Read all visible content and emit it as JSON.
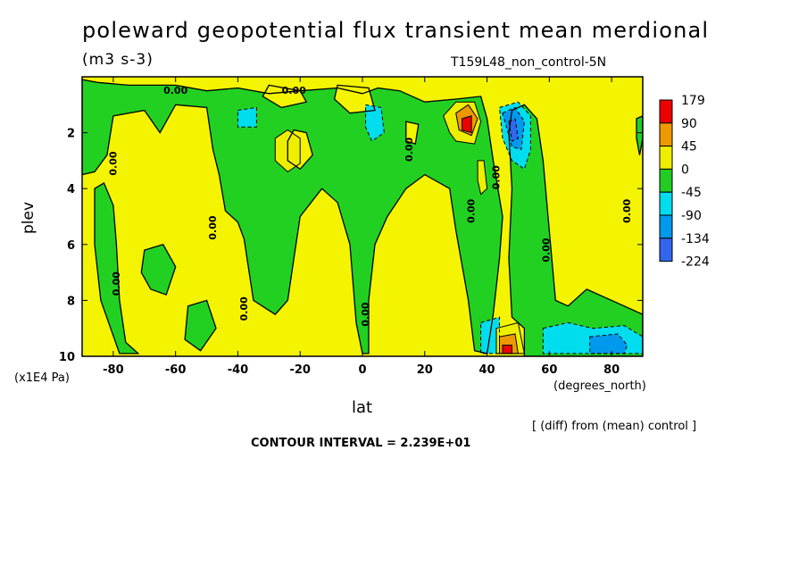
{
  "chart_data": {
    "type": "heatmap",
    "subtype": "filled-contour",
    "title": "poleward geopotential flux transient mean merdional",
    "units": "(m3 s-3)",
    "run_label": "T159L48_non_control-5N",
    "xlabel": "lat",
    "x_unit_label": "(degrees_north)",
    "ylabel": "plev",
    "y_unit_label": "(x1E4 Pa)",
    "diff_note": "[ (diff) from (mean) control ]",
    "contour_interval": "CONTOUR INTERVAL = 2.239E+01",
    "xlim": [
      -90,
      90
    ],
    "ylim": [
      10,
      0
    ],
    "x_ticks": [
      "-80",
      "-60",
      "-40",
      "-20",
      "0",
      "20",
      "40",
      "60",
      "80"
    ],
    "x_tick_values": [
      -80,
      -60,
      -40,
      -20,
      0,
      20,
      40,
      60,
      80
    ],
    "y_ticks": [
      "2",
      "4",
      "6",
      "8",
      "10"
    ],
    "y_tick_values": [
      2,
      4,
      6,
      8,
      10
    ],
    "zero_contour_label": "0.00",
    "colorbar": {
      "labels": [
        "179",
        "90",
        "45",
        "0",
        "-45",
        "-90",
        "-134",
        "-224"
      ],
      "colors": [
        "#ee0000",
        "#ee9900",
        "#eeee00",
        "#22cc22",
        "#00ddee",
        "#0099ee",
        "#3366ee"
      ]
    },
    "background_sign": {
      "positive_color": "#f4f400",
      "negative_color": "#22d022"
    },
    "regions": [
      {
        "sign": "negative",
        "polygon": [
          [
            -90,
            0.1
          ],
          [
            -90,
            3.5
          ],
          [
            -86,
            3.4
          ],
          [
            -82,
            2.8
          ],
          [
            -80,
            1.4
          ],
          [
            -70,
            1.2
          ],
          [
            -65,
            2.0
          ],
          [
            -60,
            1.0
          ],
          [
            -50,
            1.1
          ],
          [
            -48,
            2.6
          ],
          [
            -46,
            3.5
          ],
          [
            -44,
            4.8
          ],
          [
            -40,
            5.2
          ],
          [
            -38,
            5.8
          ],
          [
            -35,
            8.0
          ],
          [
            -28,
            8.5
          ],
          [
            -24,
            8.0
          ],
          [
            -22,
            6.5
          ],
          [
            -20,
            5.0
          ],
          [
            -13,
            4.0
          ],
          [
            -8,
            4.5
          ],
          [
            -4,
            6.0
          ],
          [
            -2,
            8.8
          ],
          [
            0,
            9.9
          ],
          [
            2,
            9.9
          ],
          [
            2,
            8.0
          ],
          [
            4,
            6.0
          ],
          [
            8,
            5.0
          ],
          [
            14,
            4.0
          ],
          [
            20,
            3.5
          ],
          [
            28,
            4.0
          ],
          [
            30,
            5.5
          ],
          [
            34,
            8.0
          ],
          [
            36,
            9.8
          ],
          [
            40,
            9.9
          ],
          [
            42,
            8.5
          ],
          [
            44,
            6.5
          ],
          [
            45,
            5.0
          ],
          [
            42,
            3.0
          ],
          [
            40,
            1.5
          ],
          [
            38,
            0.7
          ],
          [
            30,
            0.8
          ],
          [
            20,
            0.9
          ],
          [
            12,
            0.5
          ],
          [
            5,
            0.4
          ],
          [
            0,
            0.6
          ],
          [
            -8,
            0.4
          ],
          [
            -20,
            0.5
          ],
          [
            -30,
            0.6
          ],
          [
            -40,
            0.4
          ],
          [
            -50,
            0.5
          ],
          [
            -60,
            0.3
          ],
          [
            -75,
            0.3
          ],
          [
            -85,
            0.2
          ]
        ]
      },
      {
        "sign": "negative",
        "polygon": [
          [
            48,
            1.2
          ],
          [
            52,
            1.0
          ],
          [
            56,
            1.5
          ],
          [
            58,
            3.0
          ],
          [
            60,
            5.5
          ],
          [
            62,
            8.0
          ],
          [
            66,
            8.2
          ],
          [
            72,
            7.6
          ],
          [
            84,
            8.2
          ],
          [
            90,
            8.5
          ],
          [
            90,
            10
          ],
          [
            52,
            10
          ],
          [
            52,
            9.0
          ],
          [
            48,
            8.6
          ],
          [
            47,
            6.5
          ],
          [
            48,
            4.0
          ],
          [
            47,
            2.0
          ]
        ]
      },
      {
        "sign": "negative",
        "polygon": [
          [
            88,
            1.5
          ],
          [
            90,
            1.4
          ],
          [
            90,
            2.2
          ],
          [
            89,
            2.8
          ],
          [
            88,
            2.2
          ]
        ]
      },
      {
        "sign": "negative",
        "polygon": [
          [
            -86,
            4.0
          ],
          [
            -83,
            3.8
          ],
          [
            -80,
            4.6
          ],
          [
            -79,
            6.0
          ],
          [
            -78,
            8.0
          ],
          [
            -76,
            9.5
          ],
          [
            -72,
            9.9
          ],
          [
            -78,
            9.9
          ],
          [
            -84,
            8.0
          ],
          [
            -86,
            6.0
          ]
        ]
      },
      {
        "sign": "negative",
        "polygon": [
          [
            -70,
            6.2
          ],
          [
            -64,
            6.0
          ],
          [
            -60,
            6.8
          ],
          [
            -63,
            7.8
          ],
          [
            -68,
            7.6
          ],
          [
            -71,
            7.0
          ]
        ]
      },
      {
        "sign": "negative",
        "polygon": [
          [
            -56,
            8.2
          ],
          [
            -50,
            8.0
          ],
          [
            -47,
            9.0
          ],
          [
            -52,
            9.8
          ],
          [
            -57,
            9.4
          ]
        ]
      },
      {
        "sign": "positive",
        "polygon": [
          [
            -22,
            1.9
          ],
          [
            -18,
            2.0
          ],
          [
            -16,
            2.8
          ],
          [
            -20,
            3.3
          ],
          [
            -24,
            3.0
          ],
          [
            -24,
            2.3
          ]
        ]
      },
      {
        "sign": "positive",
        "polygon": [
          [
            14,
            1.6
          ],
          [
            18,
            1.7
          ],
          [
            17,
            2.4
          ],
          [
            14,
            2.3
          ]
        ]
      },
      {
        "sign": "positive",
        "polygon": [
          [
            -30,
            0.3
          ],
          [
            -20,
            0.5
          ],
          [
            -18,
            0.9
          ],
          [
            -26,
            1.1
          ],
          [
            -32,
            0.7
          ]
        ]
      },
      {
        "sign": "positive",
        "polygon": [
          [
            -8,
            0.3
          ],
          [
            2,
            0.4
          ],
          [
            4,
            1.2
          ],
          [
            -4,
            1.3
          ],
          [
            -9,
            0.8
          ]
        ]
      }
    ],
    "anomalies": [
      {
        "value_class": "45",
        "polygon": [
          [
            -28,
            2.2
          ],
          [
            -24,
            1.9
          ],
          [
            -20,
            2.2
          ],
          [
            -20,
            3.1
          ],
          [
            -24,
            3.4
          ],
          [
            -28,
            3.0
          ]
        ]
      },
      {
        "value_class": "45",
        "polygon": [
          [
            26,
            1.4
          ],
          [
            30,
            0.9
          ],
          [
            36,
            0.9
          ],
          [
            38,
            1.6
          ],
          [
            36,
            2.4
          ],
          [
            30,
            2.3
          ],
          [
            28,
            2.0
          ]
        ]
      },
      {
        "value_class": "90",
        "polygon": [
          [
            30,
            1.3
          ],
          [
            34,
            1.0
          ],
          [
            37,
            1.5
          ],
          [
            35,
            2.1
          ],
          [
            31,
            1.9
          ]
        ]
      },
      {
        "value_class": "179",
        "polygon": [
          [
            32,
            1.5
          ],
          [
            35,
            1.4
          ],
          [
            35,
            2.0
          ],
          [
            32,
            1.9
          ]
        ]
      },
      {
        "value_class": "45",
        "polygon": [
          [
            37,
            3.0
          ],
          [
            39,
            3.0
          ],
          [
            40,
            4.0
          ],
          [
            38,
            4.2
          ],
          [
            37,
            3.7
          ]
        ]
      },
      {
        "value_class": "-45",
        "polygon": [
          [
            44,
            1.1
          ],
          [
            50,
            0.9
          ],
          [
            54,
            1.4
          ],
          [
            54,
            2.6
          ],
          [
            52,
            3.3
          ],
          [
            48,
            3.0
          ],
          [
            45,
            2.2
          ]
        ]
      },
      {
        "value_class": "-90",
        "polygon": [
          [
            45,
            1.3
          ],
          [
            49,
            1.1
          ],
          [
            52,
            1.6
          ],
          [
            51,
            2.6
          ],
          [
            48,
            2.5
          ]
        ]
      },
      {
        "value_class": "-134",
        "polygon": [
          [
            47,
            1.6
          ],
          [
            49,
            1.5
          ],
          [
            50,
            2.2
          ],
          [
            48,
            2.3
          ]
        ]
      },
      {
        "value_class": "-45",
        "polygon": [
          [
            -40,
            1.2
          ],
          [
            -34,
            1.1
          ],
          [
            -34,
            1.8
          ],
          [
            -40,
            1.8
          ]
        ]
      },
      {
        "value_class": "-45",
        "polygon": [
          [
            1,
            1.0
          ],
          [
            6,
            1.1
          ],
          [
            7,
            2.0
          ],
          [
            3,
            2.3
          ],
          [
            1,
            1.8
          ]
        ]
      },
      {
        "value_class": "-45",
        "polygon": [
          [
            38,
            8.8
          ],
          [
            44,
            8.6
          ],
          [
            44,
            9.9
          ],
          [
            38,
            9.9
          ]
        ]
      },
      {
        "value_class": "45",
        "polygon": [
          [
            43,
            9.0
          ],
          [
            50,
            8.8
          ],
          [
            52,
            9.9
          ],
          [
            43,
            9.9
          ]
        ]
      },
      {
        "value_class": "90",
        "polygon": [
          [
            44,
            9.3
          ],
          [
            49,
            9.2
          ],
          [
            50,
            9.9
          ],
          [
            44,
            9.9
          ]
        ]
      },
      {
        "value_class": "179",
        "polygon": [
          [
            45,
            9.6
          ],
          [
            48,
            9.6
          ],
          [
            48,
            9.9
          ],
          [
            45,
            9.9
          ]
        ]
      },
      {
        "value_class": "-45",
        "polygon": [
          [
            58,
            9.0
          ],
          [
            66,
            8.8
          ],
          [
            74,
            9.0
          ],
          [
            84,
            8.9
          ],
          [
            90,
            9.3
          ],
          [
            90,
            9.9
          ],
          [
            58,
            9.9
          ]
        ]
      },
      {
        "value_class": "-90",
        "polygon": [
          [
            73,
            9.3
          ],
          [
            82,
            9.2
          ],
          [
            85,
            9.6
          ],
          [
            84,
            9.9
          ],
          [
            73,
            9.9
          ]
        ]
      }
    ]
  }
}
